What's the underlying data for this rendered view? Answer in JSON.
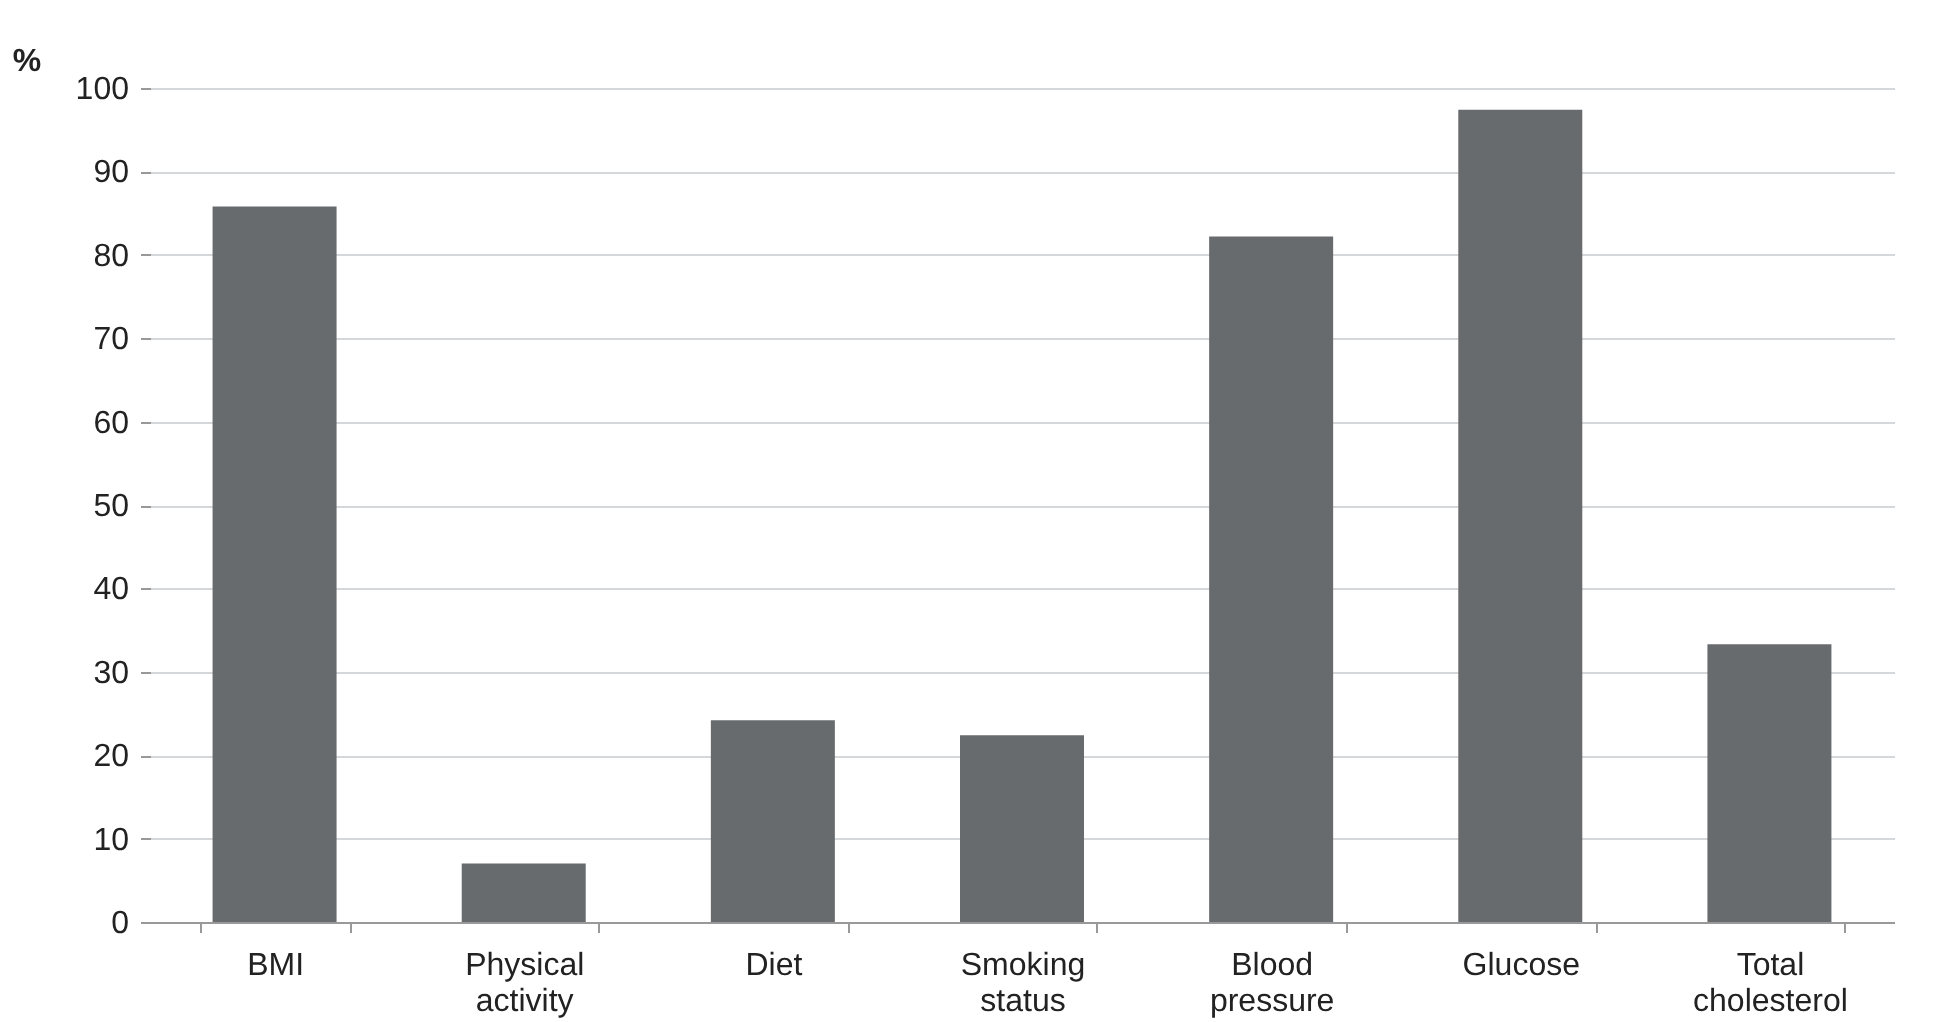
{
  "chart_data": {
    "type": "bar",
    "categories": [
      "BMI",
      "Physical activity",
      "Diet",
      "Smoking status",
      "Blood pressure",
      "Glucose",
      "Total cholesterol"
    ],
    "values": [
      85.8,
      7.0,
      24.2,
      22.4,
      82.2,
      97.4,
      33.3
    ],
    "color": "#686b6d",
    "ylabel": "%",
    "ylim": [
      0,
      100
    ],
    "yticks": [
      0,
      10,
      20,
      30,
      40,
      50,
      60,
      70,
      80,
      90,
      100
    ],
    "grid": "y"
  }
}
